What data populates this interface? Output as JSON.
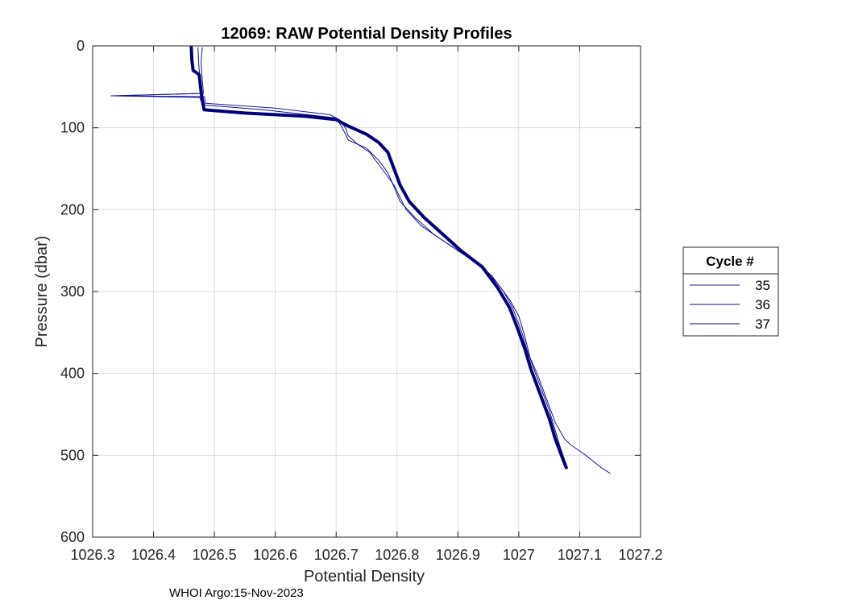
{
  "chart_data": {
    "type": "line",
    "title": "12069: RAW Potential Density Profiles",
    "xlabel": "Potential Density",
    "ylabel": "Pressure (dbar)",
    "xlim": [
      1026.3,
      1027.2
    ],
    "ylim": [
      0,
      600
    ],
    "y_reversed": true,
    "grid": true,
    "x_ticks": [
      1026.3,
      1026.4,
      1026.5,
      1026.6,
      1026.7,
      1026.8,
      1026.9,
      1027,
      1027.1,
      1027.2
    ],
    "x_tick_labels": [
      "1026.3",
      "1026.4",
      "1026.5",
      "1026.6",
      "1026.7",
      "1026.8",
      "1026.9",
      "1027",
      "1027.1",
      "1027.2"
    ],
    "y_ticks": [
      0,
      100,
      200,
      300,
      400,
      500,
      600
    ],
    "y_tick_labels": [
      "0",
      "100",
      "200",
      "300",
      "400",
      "500",
      "600"
    ],
    "legend": {
      "title": "Cycle #",
      "location": "outside-right",
      "entries": [
        "35",
        "36",
        "37"
      ]
    },
    "series": [
      {
        "name": "35",
        "color": "#1a1aa6",
        "points": [
          [
            1026.48,
            2
          ],
          [
            1026.478,
            20
          ],
          [
            1026.48,
            40
          ],
          [
            1026.482,
            58
          ],
          [
            1026.33,
            61
          ],
          [
            1026.484,
            62
          ],
          [
            1026.485,
            70
          ],
          [
            1026.6,
            76
          ],
          [
            1026.69,
            84
          ],
          [
            1026.705,
            90
          ],
          [
            1026.715,
            100
          ],
          [
            1026.72,
            110
          ],
          [
            1026.735,
            120
          ],
          [
            1026.755,
            130
          ],
          [
            1026.775,
            150
          ],
          [
            1026.795,
            170
          ],
          [
            1026.815,
            200
          ],
          [
            1026.84,
            220
          ],
          [
            1026.88,
            240
          ],
          [
            1026.92,
            260
          ],
          [
            1026.955,
            280
          ],
          [
            1026.975,
            300
          ],
          [
            1026.99,
            320
          ],
          [
            1027.005,
            350
          ],
          [
            1027.015,
            375
          ],
          [
            1027.03,
            400
          ],
          [
            1027.045,
            430
          ],
          [
            1027.06,
            460
          ],
          [
            1027.075,
            480
          ],
          [
            1027.085,
            487
          ],
          [
            1027.11,
            500
          ],
          [
            1027.135,
            515
          ],
          [
            1027.15,
            522
          ]
        ]
      },
      {
        "name": "36",
        "color": "#0f0f8c",
        "points": [
          [
            1026.473,
            2
          ],
          [
            1026.474,
            20
          ],
          [
            1026.476,
            40
          ],
          [
            1026.478,
            58
          ],
          [
            1026.34,
            61
          ],
          [
            1026.476,
            63
          ],
          [
            1026.48,
            72
          ],
          [
            1026.58,
            78
          ],
          [
            1026.7,
            88
          ],
          [
            1026.71,
            100
          ],
          [
            1026.72,
            115
          ],
          [
            1026.75,
            125
          ],
          [
            1026.77,
            140
          ],
          [
            1026.785,
            155
          ],
          [
            1026.795,
            172
          ],
          [
            1026.805,
            190
          ],
          [
            1026.83,
            210
          ],
          [
            1026.86,
            230
          ],
          [
            1026.9,
            250
          ],
          [
            1026.94,
            270
          ],
          [
            1026.965,
            290
          ],
          [
            1026.985,
            310
          ],
          [
            1027.0,
            330
          ],
          [
            1027.01,
            355
          ],
          [
            1027.02,
            385
          ],
          [
            1027.035,
            415
          ],
          [
            1027.05,
            445
          ],
          [
            1027.06,
            470
          ],
          [
            1027.068,
            490
          ],
          [
            1027.075,
            505
          ]
        ]
      },
      {
        "name": "37",
        "color": "#00007a",
        "bold": true,
        "points": [
          [
            1026.462,
            2
          ],
          [
            1026.463,
            18
          ],
          [
            1026.465,
            30
          ],
          [
            1026.475,
            35
          ],
          [
            1026.478,
            55
          ],
          [
            1026.48,
            65
          ],
          [
            1026.483,
            78
          ],
          [
            1026.55,
            82
          ],
          [
            1026.65,
            86
          ],
          [
            1026.7,
            90
          ],
          [
            1026.72,
            98
          ],
          [
            1026.75,
            108
          ],
          [
            1026.77,
            118
          ],
          [
            1026.785,
            130
          ],
          [
            1026.795,
            150
          ],
          [
            1026.805,
            170
          ],
          [
            1026.82,
            190
          ],
          [
            1026.845,
            210
          ],
          [
            1026.875,
            230
          ],
          [
            1026.905,
            250
          ],
          [
            1026.94,
            270
          ],
          [
            1026.965,
            295
          ],
          [
            1026.985,
            320
          ],
          [
            1026.998,
            345
          ],
          [
            1027.01,
            370
          ],
          [
            1027.02,
            395
          ],
          [
            1027.035,
            425
          ],
          [
            1027.05,
            455
          ],
          [
            1027.06,
            480
          ],
          [
            1027.07,
            500
          ],
          [
            1027.078,
            515
          ]
        ]
      }
    ]
  },
  "footer": {
    "text": "WHOI Argo:15-Nov-2023"
  }
}
